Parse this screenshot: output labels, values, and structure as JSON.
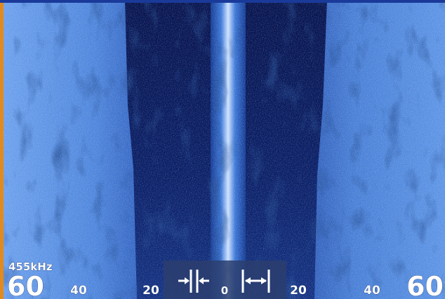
{
  "sonar": {
    "frequency": "455kHz",
    "range_labels": [
      60,
      40,
      20,
      0,
      20,
      40,
      60
    ]
  }
}
